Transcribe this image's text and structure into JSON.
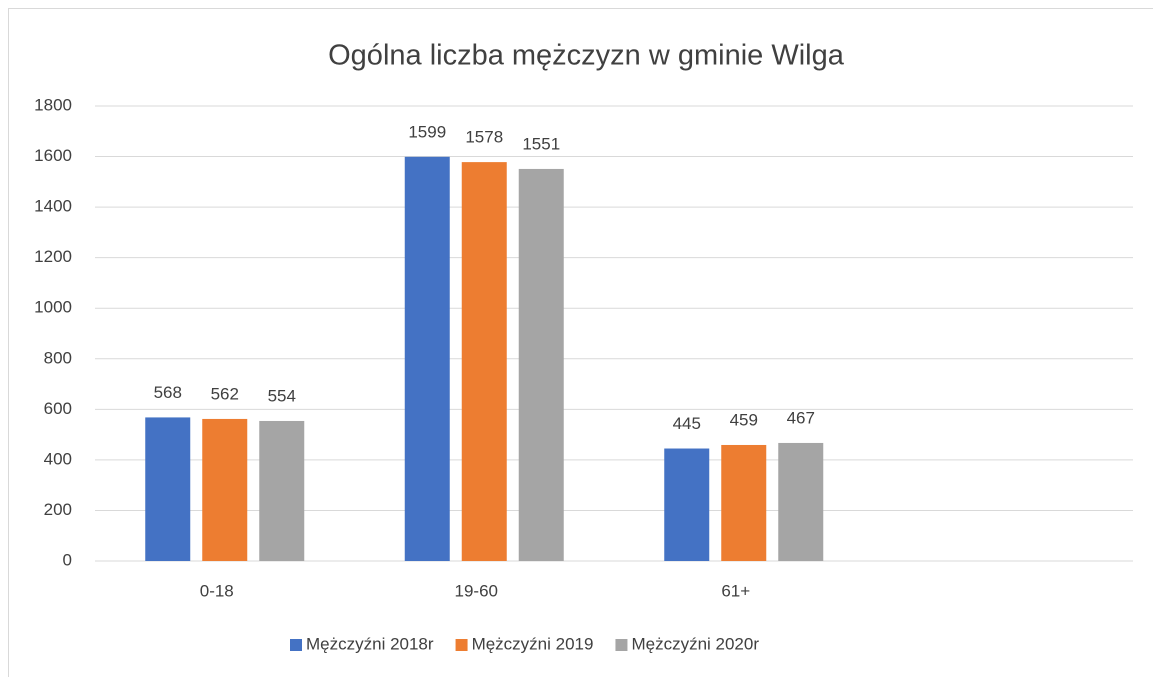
{
  "chart_data": {
    "type": "bar",
    "title": "Ogólna liczba mężczyzn w gminie Wilga",
    "categories": [
      "0-18",
      "19-60",
      "61+",
      null
    ],
    "series": [
      {
        "name": "Mężczyźni 2018r",
        "color": "#4472c4",
        "values": [
          568,
          1599,
          445,
          null
        ]
      },
      {
        "name": "Mężczyźni 2019",
        "color": "#ed7d31",
        "values": [
          562,
          1578,
          459,
          null
        ]
      },
      {
        "name": "Mężczyźni 2020r",
        "color": "#a5a5a5",
        "values": [
          554,
          1551,
          467,
          null
        ]
      }
    ],
    "ylim": [
      0,
      1800
    ],
    "yticks": [
      0,
      200,
      400,
      600,
      800,
      1000,
      1200,
      1400,
      1600,
      1800
    ],
    "grid": true,
    "legend": "bottom"
  }
}
